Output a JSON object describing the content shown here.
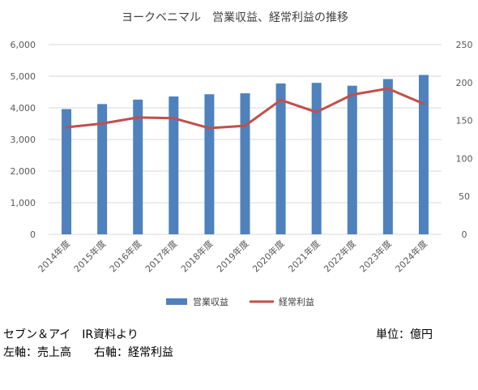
{
  "chart_data": {
    "type": "bar+line",
    "title": "ヨークベニマル　営業収益、経常利益の推移",
    "categories": [
      "2014年度",
      "2015年度",
      "2016年度",
      "2017年度",
      "2018年度",
      "2019年度",
      "2020年度",
      "2021年度",
      "2022年度",
      "2023年度",
      "2024年度"
    ],
    "series": [
      {
        "name": "営業収益",
        "type": "bar",
        "axis": "left",
        "color": "#4F81BD",
        "values": [
          3960,
          4120,
          4260,
          4360,
          4430,
          4460,
          4770,
          4790,
          4700,
          4910,
          5040
        ]
      },
      {
        "name": "経常利益",
        "type": "line",
        "axis": "right",
        "color": "#C0504D",
        "values": [
          141,
          146,
          154,
          153,
          140,
          143,
          177,
          161,
          184,
          192,
          172
        ]
      }
    ],
    "left_axis": {
      "min": 0,
      "max": 6000,
      "ticks": [
        "0",
        "1,000",
        "2,000",
        "3,000",
        "4,000",
        "5,000",
        "6,000"
      ],
      "tick_values": [
        0,
        1000,
        2000,
        3000,
        4000,
        5000,
        6000
      ]
    },
    "right_axis": {
      "min": 0,
      "max": 250,
      "ticks": [
        "0",
        "50",
        "100",
        "150",
        "200",
        "250"
      ],
      "tick_values": [
        0,
        50,
        100,
        150,
        200,
        250
      ]
    },
    "grid": true,
    "legend_position": "bottom",
    "gridline_color": "#D9D9D9"
  },
  "notes": {
    "source": "セブン＆アイ　IR資料より",
    "unit": "単位：億円",
    "axes": "左軸：売上高　　右軸：経常利益"
  }
}
